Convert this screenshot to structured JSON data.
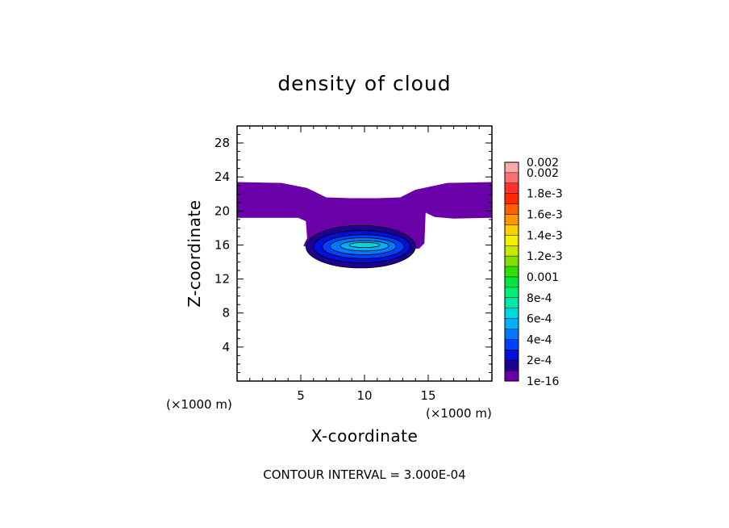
{
  "chart_data": {
    "type": "heatmap",
    "title": "density of cloud",
    "xlabel": "X-coordinate",
    "ylabel": "Z-coordinate",
    "x_unit": "(×1000 m)",
    "z_unit": "(×1000 m)",
    "xlim": [
      0,
      20
    ],
    "ylim": [
      0,
      30
    ],
    "x_ticks": [
      {
        "value": 5,
        "label": "5"
      },
      {
        "value": 10,
        "label": "10"
      },
      {
        "value": 15,
        "label": "15"
      }
    ],
    "y_ticks": [
      {
        "value": 4,
        "label": "4"
      },
      {
        "value": 8,
        "label": "8"
      },
      {
        "value": 12,
        "label": "12"
      },
      {
        "value": 16,
        "label": "16"
      },
      {
        "value": 20,
        "label": "20"
      },
      {
        "value": 24,
        "label": "24"
      },
      {
        "value": 28,
        "label": "28"
      }
    ],
    "minor_tick_step": 1,
    "contour_interval_text": "CONTOUR INTERVAL = 3.000E-04",
    "colorbar": {
      "levels": [
        {
          "label": "1e-16",
          "color": "#6a00a8"
        },
        {
          "label": "",
          "color": "#1d008f"
        },
        {
          "label": "2e-4",
          "color": "#0010d8"
        },
        {
          "label": "",
          "color": "#0040ff"
        },
        {
          "label": "4e-4",
          "color": "#0078ff"
        },
        {
          "label": "",
          "color": "#00b0ff"
        },
        {
          "label": "6e-4",
          "color": "#00d8e0"
        },
        {
          "label": "",
          "color": "#00e8a8"
        },
        {
          "label": "8e-4",
          "color": "#00ee78"
        },
        {
          "label": "",
          "color": "#00e840"
        },
        {
          "label": "0.001",
          "color": "#30e000"
        },
        {
          "label": "",
          "color": "#80e000"
        },
        {
          "label": "1.2e-3",
          "color": "#c8e800"
        },
        {
          "label": "",
          "color": "#f0f000"
        },
        {
          "label": "1.4e-3",
          "color": "#ffd000"
        },
        {
          "label": "",
          "color": "#ff9800"
        },
        {
          "label": "1.6e-3",
          "color": "#ff6000"
        },
        {
          "label": "",
          "color": "#ff2800"
        },
        {
          "label": "1.8e-3",
          "color": "#ff3030"
        },
        {
          "label": "",
          "color": "#ff7070"
        },
        {
          "label": "0.002",
          "color": "#ffa8a8"
        }
      ]
    },
    "regions": [
      {
        "name": "cloud-envelope",
        "level": 0,
        "color": "#6a00a8",
        "outline": [
          [
            0,
            23.4
          ],
          [
            3.5,
            23.3
          ],
          [
            5.5,
            22.7
          ],
          [
            7,
            21.6
          ],
          [
            9,
            21.5
          ],
          [
            11,
            21.5
          ],
          [
            12.8,
            21.6
          ],
          [
            14,
            22.5
          ],
          [
            16.5,
            23.3
          ],
          [
            20,
            23.4
          ],
          [
            20,
            19.2
          ],
          [
            17,
            19.1
          ],
          [
            15.5,
            19.3
          ],
          [
            14.8,
            19.8
          ],
          [
            14.7,
            16.2
          ],
          [
            14.3,
            15.6
          ],
          [
            13,
            15.4
          ],
          [
            11,
            15.3
          ],
          [
            9,
            15.3
          ],
          [
            7,
            15.4
          ],
          [
            5.8,
            15.6
          ],
          [
            5.2,
            15.9
          ],
          [
            5.3,
            16.2
          ],
          [
            5.5,
            16.8
          ],
          [
            5.4,
            18.8
          ],
          [
            4.8,
            19.2
          ],
          [
            0,
            19.2
          ]
        ]
      },
      {
        "name": "dome-1",
        "level": 1,
        "color": "#1d008f",
        "center": [
          9.7,
          15.8
        ],
        "rx": 4.3,
        "rz": 2.5
      },
      {
        "name": "dome-2",
        "level": 2,
        "color": "#0010d8",
        "center": [
          9.8,
          15.8
        ],
        "rx": 3.8,
        "rz": 1.9
      },
      {
        "name": "dome-3",
        "level": 3,
        "color": "#0040ff",
        "center": [
          9.9,
          15.8
        ],
        "rx": 3.2,
        "rz": 1.4
      },
      {
        "name": "dome-4",
        "level": 4,
        "color": "#0078ff",
        "center": [
          9.9,
          15.85
        ],
        "rx": 2.6,
        "rz": 1.0
      },
      {
        "name": "dome-5",
        "level": 5,
        "color": "#00b0ff",
        "center": [
          10.0,
          15.9
        ],
        "rx": 1.9,
        "rz": 0.6
      },
      {
        "name": "core",
        "level": 6,
        "color": "#00d8e0",
        "center": [
          10.0,
          16.0
        ],
        "rx": 1.2,
        "rz": 0.3
      }
    ]
  }
}
